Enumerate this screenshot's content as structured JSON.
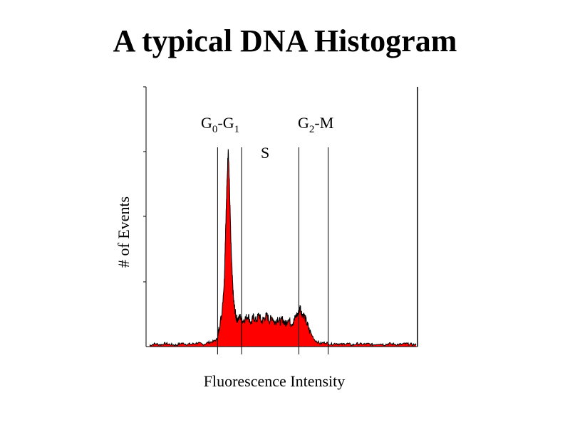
{
  "title": "A typical DNA Histogram",
  "chart_data": {
    "type": "area",
    "title": "A typical DNA Histogram",
    "xlabel": "Fluorescence Intensity",
    "ylabel": "# of Events",
    "fill_color": "#ff0000",
    "line_color": "#000000",
    "xlim": [
      0,
      1000
    ],
    "ylim": [
      0,
      100
    ],
    "x": [
      0,
      20,
      40,
      60,
      80,
      100,
      120,
      140,
      160,
      180,
      200,
      220,
      240,
      255,
      260,
      270,
      280,
      285,
      290,
      295,
      300,
      305,
      310,
      315,
      320,
      325,
      330,
      340,
      350,
      360,
      370,
      380,
      390,
      400,
      410,
      420,
      430,
      440,
      450,
      460,
      470,
      480,
      490,
      500,
      510,
      520,
      530,
      540,
      550,
      560,
      565,
      570,
      580,
      590,
      600,
      620,
      640,
      660,
      680,
      700,
      720,
      740,
      760,
      780,
      800,
      820,
      840,
      860,
      880,
      900,
      920,
      940,
      960,
      980,
      1000
    ],
    "y": [
      0.5,
      1.1,
      0.7,
      1.2,
      0.8,
      0.6,
      1.3,
      0.9,
      1.0,
      1.4,
      0.8,
      1.6,
      2.0,
      3.0,
      7.0,
      12.0,
      25.0,
      45.0,
      62.0,
      77.0,
      61.0,
      40.0,
      27.0,
      18.0,
      14.0,
      11.0,
      10.5,
      11.5,
      10.0,
      11.0,
      12.0,
      9.0,
      11.5,
      10.0,
      12.5,
      9.5,
      11.0,
      12.0,
      10.0,
      11.5,
      9.0,
      11.0,
      9.5,
      10.5,
      8.5,
      11.0,
      9.0,
      9.5,
      12.0,
      13.0,
      15.5,
      13.0,
      12.0,
      9.0,
      6.0,
      2.5,
      1.2,
      1.6,
      0.9,
      1.3,
      0.8,
      1.2,
      0.6,
      1.1,
      0.9,
      1.0,
      0.7,
      1.2,
      0.8,
      1.1,
      0.9,
      0.8,
      1.1,
      0.9,
      0.6
    ],
    "regions": [
      {
        "label": "G0-G1",
        "from": 255,
        "to": 345
      },
      {
        "label": "S",
        "from": 345,
        "to": 560
      },
      {
        "label": "G2-M",
        "from": 560,
        "to": 670
      }
    ],
    "region_labels": {
      "g0g1": {
        "G": "G",
        "sub1": "0",
        "dash": "-",
        "G_2": "G",
        "sub2": "1"
      },
      "s": "S",
      "g2m": {
        "G": "G",
        "sub": "2",
        "rest": "-M"
      }
    }
  }
}
